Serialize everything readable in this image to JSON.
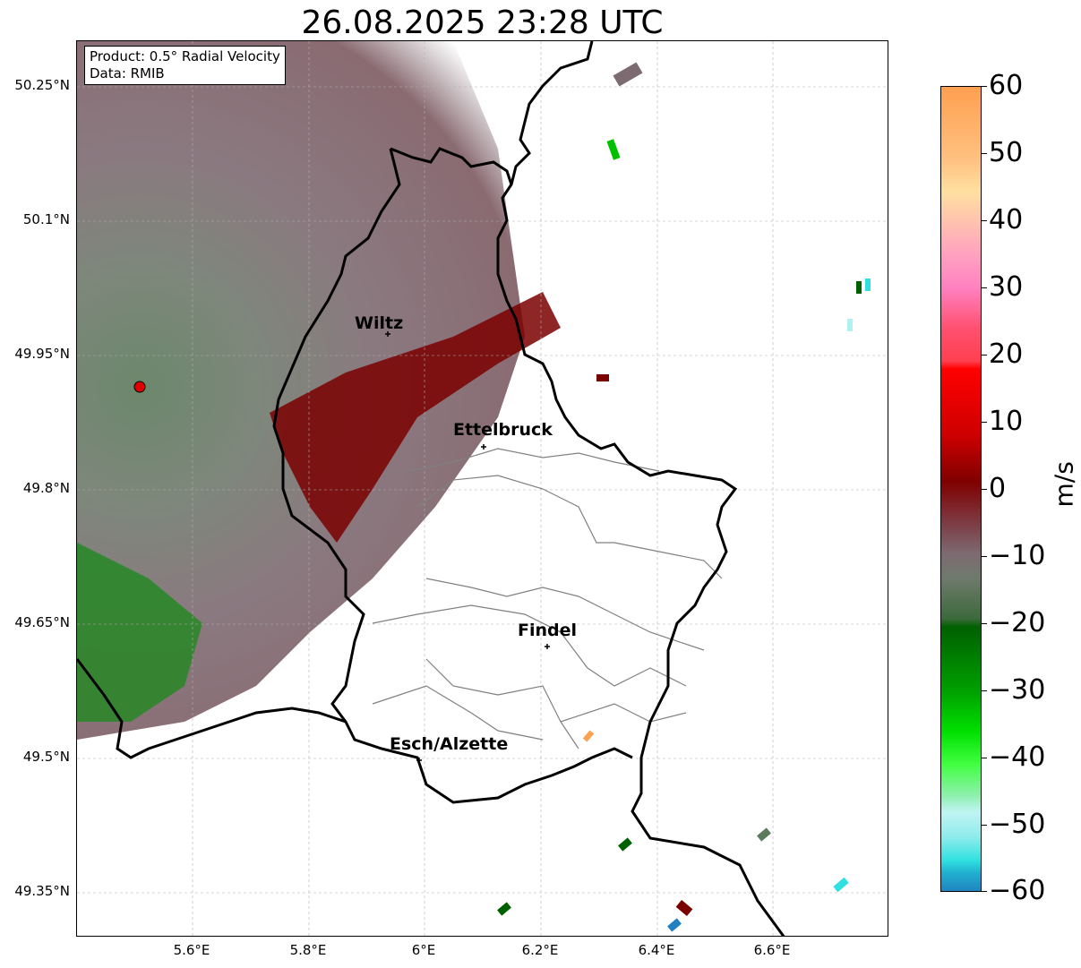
{
  "title": "26.08.2025 23:28 UTC",
  "info": {
    "product": "Product: 0.5° Radial Velocity",
    "data": "Data: RMIB"
  },
  "lat_ticks": [
    "50.25°N",
    "50.1°N",
    "49.95°N",
    "49.8°N",
    "49.65°N",
    "49.5°N",
    "49.35°N"
  ],
  "lon_ticks": [
    "5.6°E",
    "5.8°E",
    "6°E",
    "6.2°E",
    "6.4°E",
    "6.6°E"
  ],
  "cities": [
    "Wiltz",
    "Ettelbruck",
    "Findel",
    "Esch/Alzette"
  ],
  "colorbar": {
    "label": "m/s",
    "ticks": [
      "60",
      "50",
      "40",
      "30",
      "20",
      "10",
      "0",
      "−10",
      "−20",
      "−30",
      "−40",
      "−50",
      "−60"
    ],
    "range": [
      -60,
      60
    ]
  },
  "colors": {
    "positive_dark": "#7a0000",
    "positive_red": "#e00000",
    "pink": "#ff80c0",
    "orange": "#ffa050",
    "near_zero_mauve": "#7d6b72",
    "near_zero_green": "#5c7a5c",
    "negative_green": "#00c000",
    "negative_light": "#60ff60",
    "cyan": "#30e0e0",
    "blue": "#2080c0",
    "border": "#000000",
    "canton": "#808080",
    "radar_site": "#e00000"
  }
}
